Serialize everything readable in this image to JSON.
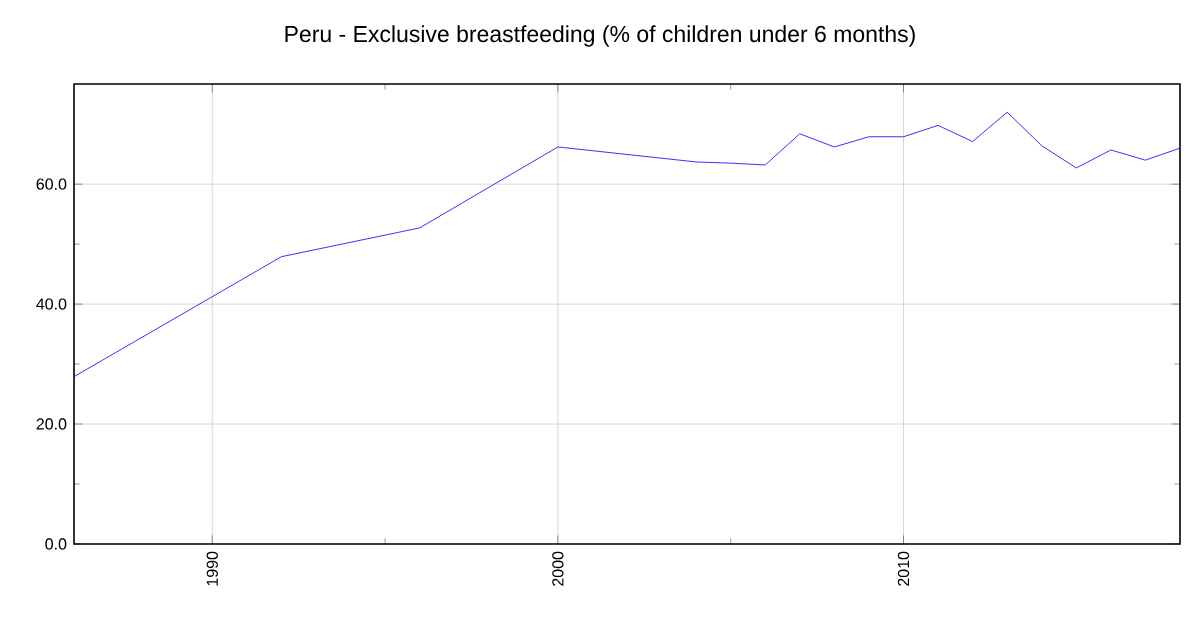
{
  "chart_data": {
    "type": "line",
    "title": "Peru - Exclusive breastfeeding (% of children under 6 months)",
    "x": [
      1986,
      1992,
      1996,
      2000,
      2004,
      2005,
      2006,
      2007,
      2008,
      2009,
      2010,
      2011,
      2012,
      2013,
      2014,
      2015,
      2016,
      2017,
      2018
    ],
    "series": [
      {
        "color": "#0000ff",
        "values": [
          27.9,
          47.9,
          52.7,
          66.2,
          63.7,
          63.5,
          63.2,
          68.4,
          66.2,
          67.9,
          67.9,
          69.8,
          67.1,
          72.0,
          66.4,
          62.7,
          65.7,
          64.0,
          66.0
        ]
      }
    ],
    "xlim": [
      1986,
      2018
    ],
    "ylim": [
      0,
      76.7
    ],
    "xticks": [
      1990,
      2000,
      2010
    ],
    "yticks": [
      {
        "value": 0,
        "label": "0.0"
      },
      {
        "value": 20,
        "label": "20.0"
      },
      {
        "value": 40,
        "label": "40.0"
      },
      {
        "value": 60,
        "label": "60.0"
      }
    ],
    "grid": true,
    "marker": "none",
    "line_style": "solid"
  }
}
